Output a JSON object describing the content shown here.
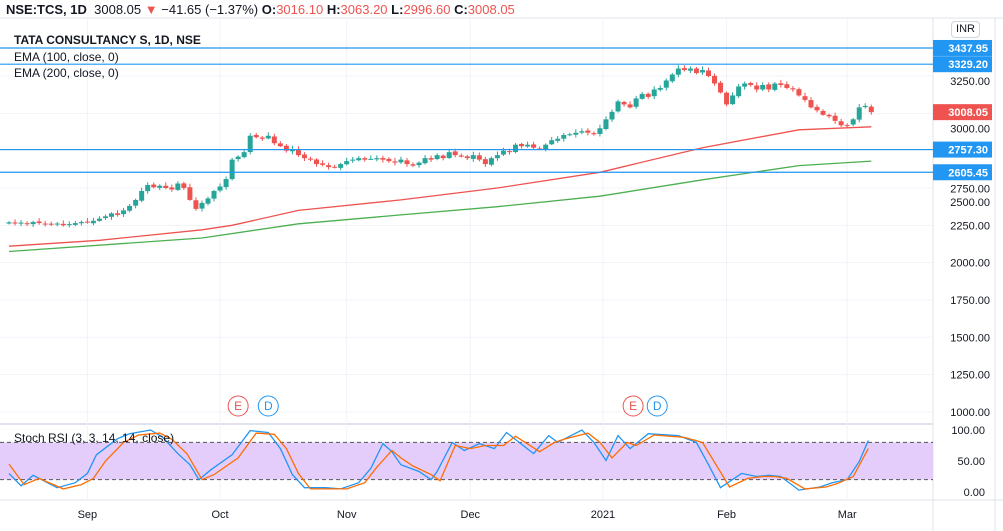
{
  "header": {
    "symbol": "NSE:TCS, 1D",
    "last": "3008.05",
    "change": "−41.65 (−1.37%)",
    "o_label": "O:",
    "o": "3016.10",
    "h_label": "H:",
    "h": "3063.20",
    "l_label": "L:",
    "l": "2996.60",
    "c_label": "C:",
    "c": "3008.05"
  },
  "legend": {
    "title": "TATA CONSULTANCY S, 1D, NSE",
    "ema100": "EMA (100, close, 0)",
    "ema200": "EMA (200, close, 0)",
    "stoch": "Stoch RSI (3, 3, 14, 14, close)"
  },
  "currency": "INR",
  "colors": {
    "up": "#26a69a",
    "down": "#ef5350",
    "ema100": "#ef5350",
    "ema200": "#4caf50",
    "level": "#2196f3",
    "k": "#2196f3",
    "d": "#ff6d00",
    "band": "#e1c4fa"
  },
  "chart_data": [
    {
      "type": "candlestick",
      "title": "TATA CONSULTANCY S, 1D, NSE",
      "y_ticks": [
        "1000.00",
        "1250.00",
        "1500.00",
        "1750.00",
        "2000.00",
        "2250.00",
        "2500.00",
        "2750.00",
        "3000.00",
        "3250.00"
      ],
      "y_tick_values": [
        1000,
        1250,
        1500,
        1750,
        2000,
        2250,
        2500,
        2750,
        3000,
        3250
      ],
      "x_labels": [
        {
          "label": "Sep",
          "bar": 13
        },
        {
          "label": "Oct",
          "bar": 35
        },
        {
          "label": "Nov",
          "bar": 56
        },
        {
          "label": "Dec",
          "bar": 76.5
        },
        {
          "label": "2021",
          "bar": 98.5
        },
        {
          "label": "Feb",
          "bar": 119
        },
        {
          "label": "Mar",
          "bar": 139
        }
      ],
      "closes": [
        2270,
        2262,
        2268,
        2258,
        2272,
        2265,
        2260,
        2255,
        2262,
        2250,
        2258,
        2265,
        2272,
        2268,
        2280,
        2295,
        2310,
        2330,
        2320,
        2350,
        2380,
        2420,
        2480,
        2520,
        2505,
        2515,
        2500,
        2490,
        2530,
        2500,
        2420,
        2360,
        2400,
        2430,
        2480,
        2510,
        2560,
        2690,
        2710,
        2740,
        2850,
        2840,
        2830,
        2850,
        2800,
        2780,
        2750,
        2760,
        2720,
        2700,
        2690,
        2660,
        2655,
        2640,
        2640,
        2660,
        2680,
        2690,
        2700,
        2690,
        2695,
        2700,
        2690,
        2680,
        2670,
        2690,
        2660,
        2650,
        2670,
        2700,
        2690,
        2720,
        2700,
        2740,
        2720,
        2710,
        2700,
        2720,
        2690,
        2660,
        2700,
        2720,
        2750,
        2740,
        2790,
        2780,
        2790,
        2770,
        2760,
        2790,
        2820,
        2830,
        2855,
        2860,
        2870,
        2880,
        2870,
        2860,
        2900,
        2960,
        3010,
        3080,
        3060,
        3040,
        3100,
        3130,
        3110,
        3160,
        3170,
        3220,
        3260,
        3300,
        3290,
        3300,
        3270,
        3290,
        3250,
        3200,
        3140,
        3060,
        3120,
        3180,
        3200,
        3190,
        3160,
        3190,
        3160,
        3200,
        3190,
        3170,
        3160,
        3120,
        3090,
        3040,
        3020,
        2990,
        2980,
        2950,
        2920,
        2920,
        2960,
        3040,
        3050,
        3008.05
      ],
      "ema100": [
        [
          0,
          2110
        ],
        [
          15,
          2150
        ],
        [
          32,
          2220
        ],
        [
          37,
          2250
        ],
        [
          48,
          2350
        ],
        [
          65,
          2420
        ],
        [
          81,
          2500
        ],
        [
          98,
          2605
        ],
        [
          115,
          2770
        ],
        [
          131,
          2890
        ],
        [
          143,
          2910
        ]
      ],
      "ema200": [
        [
          0,
          2075
        ],
        [
          32,
          2165
        ],
        [
          48,
          2260
        ],
        [
          65,
          2320
        ],
        [
          81,
          2375
        ],
        [
          98,
          2445
        ],
        [
          115,
          2555
        ],
        [
          131,
          2650
        ],
        [
          143,
          2680
        ]
      ],
      "levels": [
        {
          "label": "3437.95",
          "value": 3437.95
        },
        {
          "label": "3329.20",
          "value": 3329.2
        },
        {
          "label": "2757.30",
          "value": 2757.3
        },
        {
          "label": "2605.45",
          "value": 2605.45
        }
      ],
      "last_price": {
        "label": "3008.05",
        "value": 3008.05
      },
      "events": [
        {
          "label": "E",
          "bar": 38
        },
        {
          "label": "D",
          "bar": 43
        },
        {
          "label": "E",
          "bar": 103.5
        },
        {
          "label": "D",
          "bar": 107.5
        }
      ]
    },
    {
      "type": "line",
      "title": "Stoch RSI (3, 3, 14, 14, close)",
      "ylim": [
        0,
        100
      ],
      "y_ticks": [
        "0.00",
        "50.00",
        "100.00"
      ],
      "y_tick_values": [
        0,
        50,
        100
      ],
      "bands": [
        20,
        80
      ],
      "k": [
        [
          0,
          30
        ],
        [
          2,
          10
        ],
        [
          4,
          27
        ],
        [
          8,
          7
        ],
        [
          11,
          15
        ],
        [
          13,
          30
        ],
        [
          14.5,
          60
        ],
        [
          18,
          86
        ],
        [
          20,
          94
        ],
        [
          23.5,
          100
        ],
        [
          25.5,
          88
        ],
        [
          28,
          62
        ],
        [
          30,
          44
        ],
        [
          31.5,
          20
        ],
        [
          33.5,
          36
        ],
        [
          37,
          60
        ],
        [
          40,
          99
        ],
        [
          43,
          96
        ],
        [
          45,
          70
        ],
        [
          47,
          28
        ],
        [
          49,
          7
        ],
        [
          52.5,
          7
        ],
        [
          55,
          5
        ],
        [
          58,
          15
        ],
        [
          60,
          38
        ],
        [
          62,
          78
        ],
        [
          63.5,
          65
        ],
        [
          65,
          44
        ],
        [
          68,
          33
        ],
        [
          70,
          20
        ],
        [
          71,
          33
        ],
        [
          73.5,
          80
        ],
        [
          75.5,
          67
        ],
        [
          78,
          78
        ],
        [
          80.5,
          70
        ],
        [
          82.5,
          96
        ],
        [
          87,
          62
        ],
        [
          89.5,
          91
        ],
        [
          91,
          80
        ],
        [
          95,
          100
        ],
        [
          97,
          80
        ],
        [
          99,
          51
        ],
        [
          101,
          91
        ],
        [
          103,
          70
        ],
        [
          106,
          94
        ],
        [
          111,
          91
        ],
        [
          114,
          80
        ],
        [
          116,
          44
        ],
        [
          118,
          7
        ],
        [
          121.5,
          30
        ],
        [
          124,
          25
        ],
        [
          126,
          27
        ],
        [
          128,
          25
        ],
        [
          131,
          3
        ],
        [
          134.5,
          8
        ],
        [
          136.5,
          15
        ],
        [
          139,
          20
        ],
        [
          141,
          49
        ],
        [
          142.5,
          83
        ]
      ],
      "d": [
        [
          0,
          45
        ],
        [
          2.5,
          12
        ],
        [
          5,
          22
        ],
        [
          9,
          5
        ],
        [
          12,
          12
        ],
        [
          14,
          22
        ],
        [
          16,
          50
        ],
        [
          19,
          80
        ],
        [
          21.5,
          92
        ],
        [
          25,
          95
        ],
        [
          27,
          85
        ],
        [
          29.5,
          62
        ],
        [
          32,
          20
        ],
        [
          34,
          28
        ],
        [
          38,
          55
        ],
        [
          41,
          95
        ],
        [
          44,
          93
        ],
        [
          46,
          70
        ],
        [
          48,
          30
        ],
        [
          50,
          5
        ],
        [
          53,
          5
        ],
        [
          56,
          5
        ],
        [
          59,
          15
        ],
        [
          61,
          40
        ],
        [
          63.5,
          67
        ],
        [
          65,
          55
        ],
        [
          67,
          42
        ],
        [
          70,
          28
        ],
        [
          71.5,
          18
        ],
        [
          74,
          75
        ],
        [
          76.5,
          70
        ],
        [
          79,
          75
        ],
        [
          82,
          75
        ],
        [
          84,
          90
        ],
        [
          88,
          65
        ],
        [
          90.5,
          80
        ],
        [
          92,
          85
        ],
        [
          96,
          95
        ],
        [
          98,
          80
        ],
        [
          100,
          55
        ],
        [
          102.5,
          80
        ],
        [
          104,
          75
        ],
        [
          107,
          92
        ],
        [
          112,
          88
        ],
        [
          115,
          80
        ],
        [
          117.5,
          40
        ],
        [
          119.5,
          8
        ],
        [
          122.5,
          22
        ],
        [
          125,
          25
        ],
        [
          127,
          25
        ],
        [
          129,
          22
        ],
        [
          132,
          5
        ],
        [
          135.5,
          8
        ],
        [
          137.5,
          14
        ],
        [
          140,
          25
        ],
        [
          142.5,
          70
        ]
      ]
    }
  ]
}
